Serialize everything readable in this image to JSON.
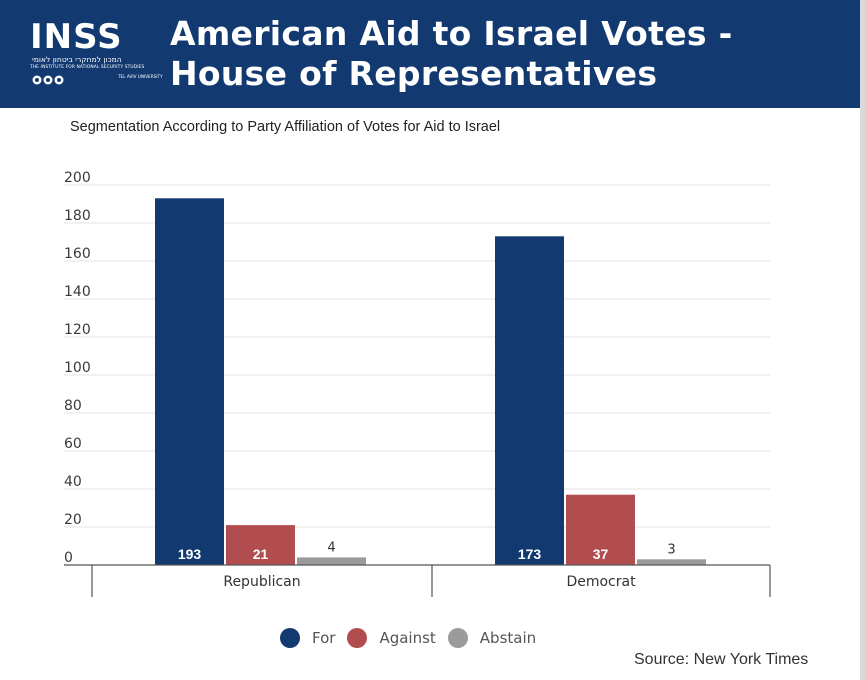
{
  "header": {
    "logo_text": "INSS",
    "logo_hebrew": "המכון למחקרי ביטחון לאומי",
    "logo_english": "THE INSTITUTE FOR NATIONAL SECURITY STUDIES",
    "logo_tau": "TEL AVIV UNIVERSITY",
    "title": "American Aid to Israel Votes - House of Representatives"
  },
  "subtitle": "Segmentation According to Party Affiliation of Votes for Aid to Israel",
  "source": "Source: New York Times",
  "colors": {
    "header_bg": "#123a70",
    "for": "#123a70",
    "against": "#b24d4f",
    "abstain": "#9b9b9b"
  },
  "chart_data": {
    "type": "bar",
    "title": "Segmentation According to Party Affiliation of Votes for Aid to Israel",
    "categories": [
      "Republican",
      "Democrat"
    ],
    "series": [
      {
        "name": "For",
        "values": [
          193,
          173
        ],
        "color": "#123a70"
      },
      {
        "name": "Against",
        "values": [
          21,
          37
        ],
        "color": "#b24d4f"
      },
      {
        "name": "Abstain",
        "values": [
          4,
          3
        ],
        "color": "#9b9b9b"
      }
    ],
    "ylim": [
      0,
      200
    ],
    "yticks": [
      0,
      20,
      40,
      60,
      80,
      100,
      120,
      140,
      160,
      180,
      200
    ],
    "xlabel": "",
    "ylabel": "",
    "grid": true,
    "legend_position": "bottom-center"
  }
}
